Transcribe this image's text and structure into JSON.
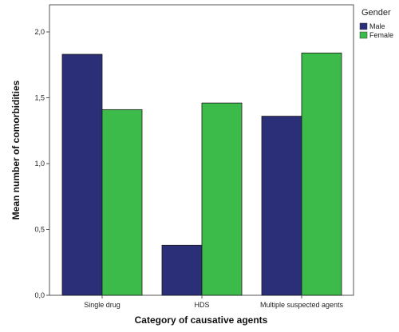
{
  "chart_data": {
    "type": "bar",
    "categories": [
      "Single drug",
      "HDS",
      "Multiple suspected agents"
    ],
    "series": [
      {
        "name": "Male",
        "values": [
          1.83,
          0.38,
          1.36
        ],
        "color": "#2a2f78"
      },
      {
        "name": "Female",
        "values": [
          1.41,
          1.46,
          1.84
        ],
        "color": "#3dbb4a"
      }
    ],
    "xlabel": "Category of causative agents",
    "ylabel": "Mean number of comorbidities",
    "ylim": [
      0,
      2.0
    ],
    "yticks": [
      "0,0",
      "0,5",
      "1,0",
      "1,5",
      "2,0"
    ],
    "ytick_values": [
      0,
      0.5,
      1.0,
      1.5,
      2.0
    ],
    "legend_title": "Gender",
    "legend_position": "top-right",
    "grid": false
  }
}
